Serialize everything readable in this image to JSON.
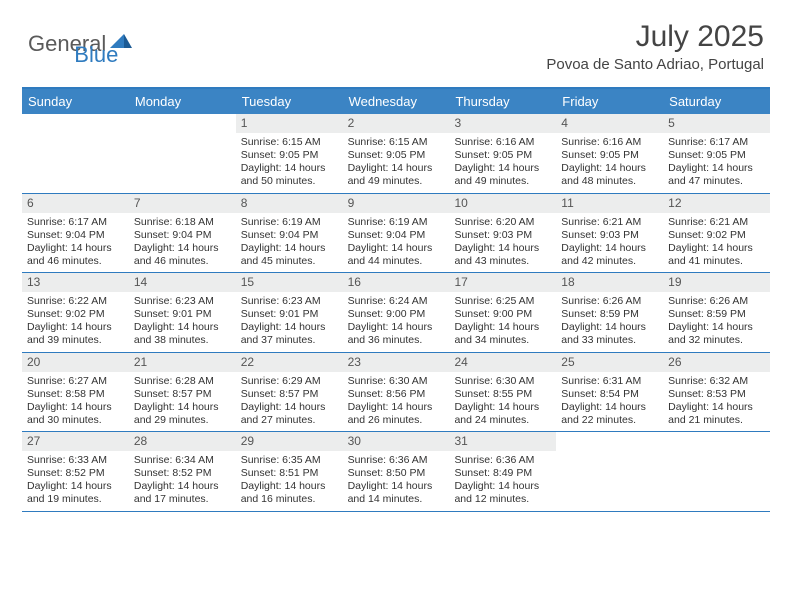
{
  "logo": {
    "general": "General",
    "blue": "Blue"
  },
  "title": "July 2025",
  "location": "Povoa de Santo Adriao, Portugal",
  "day_headers": [
    "Sunday",
    "Monday",
    "Tuesday",
    "Wednesday",
    "Thursday",
    "Friday",
    "Saturday"
  ],
  "header_bg": "#3b84c4",
  "accent": "#2f7bbf",
  "weeks": [
    [
      null,
      null,
      {
        "n": "1",
        "sr": "6:15 AM",
        "ss": "9:05 PM",
        "dl": "14 hours and 50 minutes."
      },
      {
        "n": "2",
        "sr": "6:15 AM",
        "ss": "9:05 PM",
        "dl": "14 hours and 49 minutes."
      },
      {
        "n": "3",
        "sr": "6:16 AM",
        "ss": "9:05 PM",
        "dl": "14 hours and 49 minutes."
      },
      {
        "n": "4",
        "sr": "6:16 AM",
        "ss": "9:05 PM",
        "dl": "14 hours and 48 minutes."
      },
      {
        "n": "5",
        "sr": "6:17 AM",
        "ss": "9:05 PM",
        "dl": "14 hours and 47 minutes."
      }
    ],
    [
      {
        "n": "6",
        "sr": "6:17 AM",
        "ss": "9:04 PM",
        "dl": "14 hours and 46 minutes."
      },
      {
        "n": "7",
        "sr": "6:18 AM",
        "ss": "9:04 PM",
        "dl": "14 hours and 46 minutes."
      },
      {
        "n": "8",
        "sr": "6:19 AM",
        "ss": "9:04 PM",
        "dl": "14 hours and 45 minutes."
      },
      {
        "n": "9",
        "sr": "6:19 AM",
        "ss": "9:04 PM",
        "dl": "14 hours and 44 minutes."
      },
      {
        "n": "10",
        "sr": "6:20 AM",
        "ss": "9:03 PM",
        "dl": "14 hours and 43 minutes."
      },
      {
        "n": "11",
        "sr": "6:21 AM",
        "ss": "9:03 PM",
        "dl": "14 hours and 42 minutes."
      },
      {
        "n": "12",
        "sr": "6:21 AM",
        "ss": "9:02 PM",
        "dl": "14 hours and 41 minutes."
      }
    ],
    [
      {
        "n": "13",
        "sr": "6:22 AM",
        "ss": "9:02 PM",
        "dl": "14 hours and 39 minutes."
      },
      {
        "n": "14",
        "sr": "6:23 AM",
        "ss": "9:01 PM",
        "dl": "14 hours and 38 minutes."
      },
      {
        "n": "15",
        "sr": "6:23 AM",
        "ss": "9:01 PM",
        "dl": "14 hours and 37 minutes."
      },
      {
        "n": "16",
        "sr": "6:24 AM",
        "ss": "9:00 PM",
        "dl": "14 hours and 36 minutes."
      },
      {
        "n": "17",
        "sr": "6:25 AM",
        "ss": "9:00 PM",
        "dl": "14 hours and 34 minutes."
      },
      {
        "n": "18",
        "sr": "6:26 AM",
        "ss": "8:59 PM",
        "dl": "14 hours and 33 minutes."
      },
      {
        "n": "19",
        "sr": "6:26 AM",
        "ss": "8:59 PM",
        "dl": "14 hours and 32 minutes."
      }
    ],
    [
      {
        "n": "20",
        "sr": "6:27 AM",
        "ss": "8:58 PM",
        "dl": "14 hours and 30 minutes."
      },
      {
        "n": "21",
        "sr": "6:28 AM",
        "ss": "8:57 PM",
        "dl": "14 hours and 29 minutes."
      },
      {
        "n": "22",
        "sr": "6:29 AM",
        "ss": "8:57 PM",
        "dl": "14 hours and 27 minutes."
      },
      {
        "n": "23",
        "sr": "6:30 AM",
        "ss": "8:56 PM",
        "dl": "14 hours and 26 minutes."
      },
      {
        "n": "24",
        "sr": "6:30 AM",
        "ss": "8:55 PM",
        "dl": "14 hours and 24 minutes."
      },
      {
        "n": "25",
        "sr": "6:31 AM",
        "ss": "8:54 PM",
        "dl": "14 hours and 22 minutes."
      },
      {
        "n": "26",
        "sr": "6:32 AM",
        "ss": "8:53 PM",
        "dl": "14 hours and 21 minutes."
      }
    ],
    [
      {
        "n": "27",
        "sr": "6:33 AM",
        "ss": "8:52 PM",
        "dl": "14 hours and 19 minutes."
      },
      {
        "n": "28",
        "sr": "6:34 AM",
        "ss": "8:52 PM",
        "dl": "14 hours and 17 minutes."
      },
      {
        "n": "29",
        "sr": "6:35 AM",
        "ss": "8:51 PM",
        "dl": "14 hours and 16 minutes."
      },
      {
        "n": "30",
        "sr": "6:36 AM",
        "ss": "8:50 PM",
        "dl": "14 hours and 14 minutes."
      },
      {
        "n": "31",
        "sr": "6:36 AM",
        "ss": "8:49 PM",
        "dl": "14 hours and 12 minutes."
      },
      null,
      null
    ]
  ],
  "labels": {
    "sunrise": "Sunrise: ",
    "sunset": "Sunset: ",
    "daylight": "Daylight: "
  }
}
